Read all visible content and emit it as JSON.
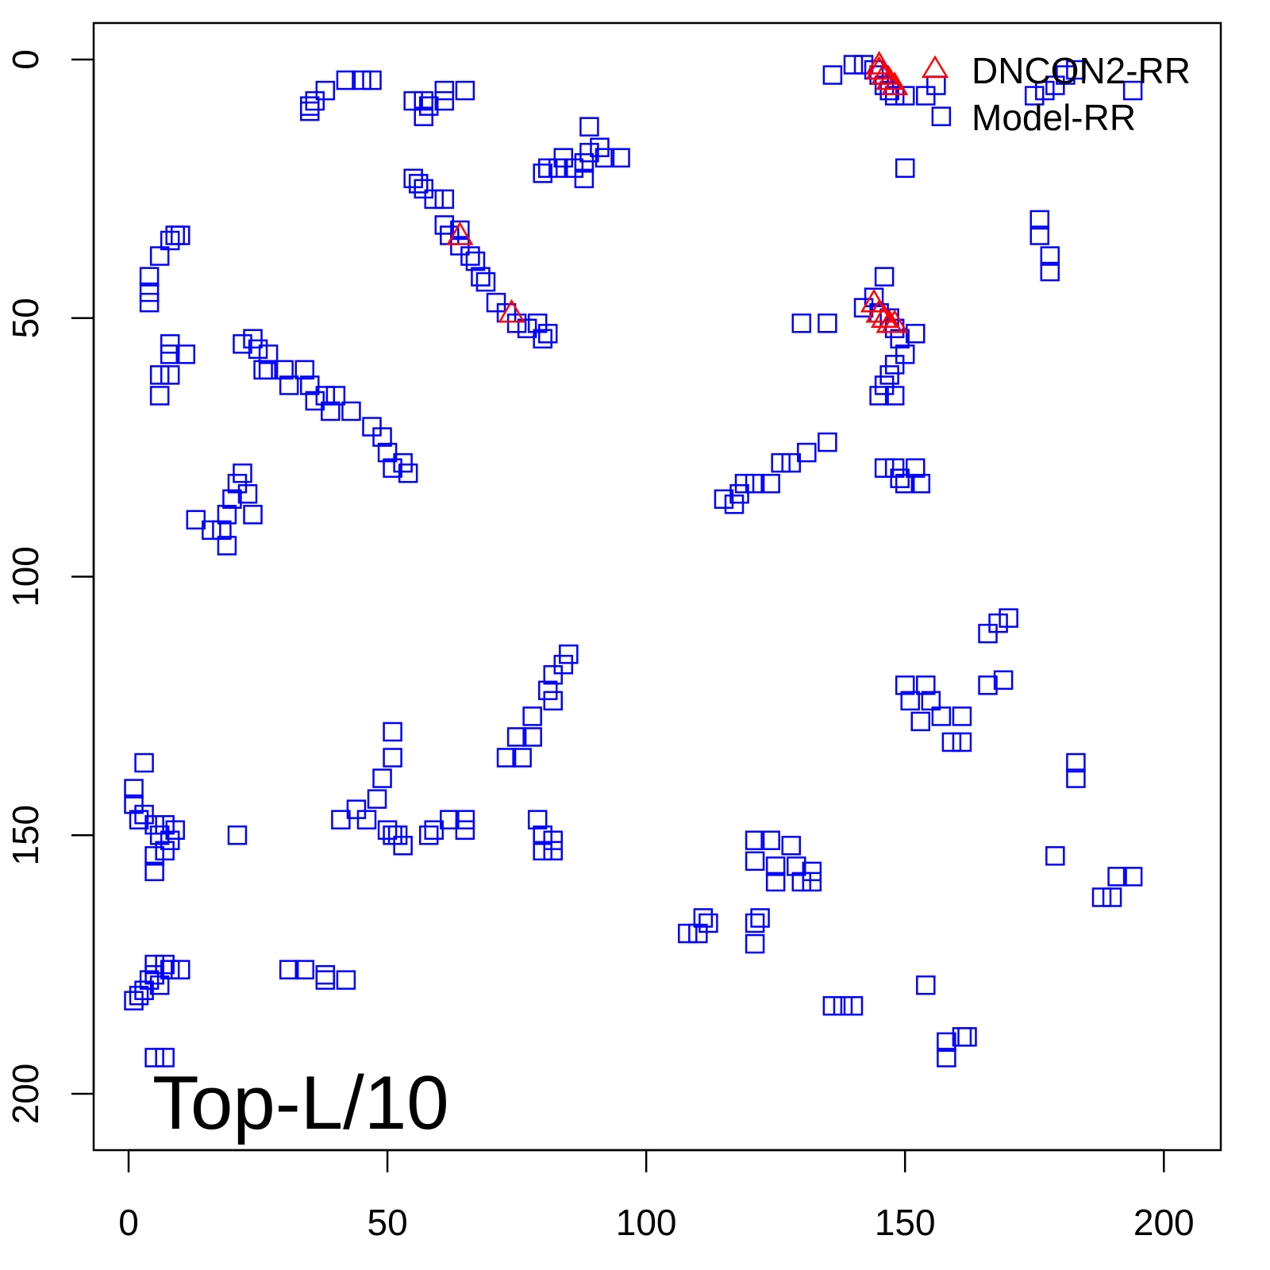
{
  "chart_data": {
    "type": "scatter",
    "title": "",
    "annotation": "Top-L/10",
    "xlabel": "",
    "ylabel": "",
    "xlim": [
      -6.75,
      211
    ],
    "ylim": [
      -7.06,
      210.9
    ],
    "y_inverted": true,
    "x_ticks": [
      "0",
      "50",
      "100",
      "150",
      "200"
    ],
    "y_ticks": [
      "0",
      "50",
      "100",
      "150",
      "200"
    ],
    "grid": false,
    "legend": {
      "placement": "top-right",
      "entries": [
        "DNCON2-RR",
        "Model-RR"
      ]
    },
    "colors": {
      "DNCON2-RR": "#FF0000",
      "Model-RR": "#0000FF"
    },
    "series": [
      {
        "name": "Model-RR",
        "marker": "square",
        "points": [
          [
            35,
            10
          ],
          [
            35,
            9
          ],
          [
            36,
            8
          ],
          [
            38,
            6
          ],
          [
            42,
            4
          ],
          [
            45,
            4
          ],
          [
            47,
            4
          ],
          [
            55,
            8
          ],
          [
            57,
            8
          ],
          [
            57,
            11
          ],
          [
            58,
            9
          ],
          [
            61,
            8
          ],
          [
            61,
            6
          ],
          [
            65,
            6
          ],
          [
            80,
            22
          ],
          [
            81,
            21
          ],
          [
            83,
            21
          ],
          [
            84,
            19
          ],
          [
            86,
            21
          ],
          [
            88,
            20
          ],
          [
            89,
            18
          ],
          [
            89,
            13
          ],
          [
            91,
            17
          ],
          [
            92,
            19
          ],
          [
            95,
            19
          ],
          [
            88,
            23
          ],
          [
            55,
            23
          ],
          [
            56,
            24
          ],
          [
            57,
            25
          ],
          [
            59,
            27
          ],
          [
            61,
            27
          ],
          [
            61,
            32
          ],
          [
            62,
            34
          ],
          [
            64,
            33
          ],
          [
            64,
            36
          ],
          [
            66,
            38
          ],
          [
            67,
            39
          ],
          [
            68,
            42
          ],
          [
            69,
            43
          ],
          [
            71,
            47
          ],
          [
            73,
            49
          ],
          [
            75,
            51
          ],
          [
            77,
            52
          ],
          [
            79,
            51
          ],
          [
            80,
            54
          ],
          [
            81,
            53
          ],
          [
            136,
            3
          ],
          [
            140,
            1
          ],
          [
            142,
            1
          ],
          [
            144,
            2
          ],
          [
            145,
            3
          ],
          [
            146,
            5
          ],
          [
            147,
            6
          ],
          [
            148,
            7
          ],
          [
            150,
            7
          ],
          [
            154,
            7
          ],
          [
            156,
            5
          ],
          [
            157,
            11
          ],
          [
            150,
            21
          ],
          [
            175,
            7
          ],
          [
            177,
            6
          ],
          [
            179,
            5
          ],
          [
            181,
            3
          ],
          [
            183,
            2
          ],
          [
            194,
            6
          ],
          [
            176,
            31
          ],
          [
            176,
            34
          ],
          [
            178,
            38
          ],
          [
            178,
            41
          ],
          [
            130,
            51
          ],
          [
            135,
            51
          ],
          [
            142,
            48
          ],
          [
            144,
            46
          ],
          [
            145,
            49
          ],
          [
            146,
            42
          ],
          [
            147,
            50
          ],
          [
            148,
            52
          ],
          [
            149,
            54
          ],
          [
            150,
            57
          ],
          [
            152,
            53
          ],
          [
            148,
            59
          ],
          [
            147,
            61
          ],
          [
            146,
            63
          ],
          [
            145,
            65
          ],
          [
            148,
            65
          ],
          [
            4,
            42
          ],
          [
            4,
            45
          ],
          [
            4,
            47
          ],
          [
            6,
            38
          ],
          [
            8,
            35
          ],
          [
            9,
            34
          ],
          [
            10,
            34
          ],
          [
            8,
            55
          ],
          [
            8,
            57
          ],
          [
            6,
            61
          ],
          [
            8,
            61
          ],
          [
            11,
            57
          ],
          [
            6,
            65
          ],
          [
            22,
            55
          ],
          [
            24,
            54
          ],
          [
            25,
            56
          ],
          [
            27,
            57
          ],
          [
            26,
            60
          ],
          [
            27,
            60
          ],
          [
            30,
            60
          ],
          [
            31,
            63
          ],
          [
            34,
            60
          ],
          [
            35,
            63
          ],
          [
            36,
            66
          ],
          [
            38,
            65
          ],
          [
            39,
            68
          ],
          [
            40,
            65
          ],
          [
            43,
            68
          ],
          [
            47,
            71
          ],
          [
            49,
            73
          ],
          [
            50,
            76
          ],
          [
            51,
            79
          ],
          [
            53,
            78
          ],
          [
            54,
            80
          ],
          [
            13,
            89
          ],
          [
            16,
            91
          ],
          [
            18,
            91
          ],
          [
            19,
            94
          ],
          [
            19,
            88
          ],
          [
            20,
            85
          ],
          [
            21,
            82
          ],
          [
            22,
            80
          ],
          [
            23,
            84
          ],
          [
            24,
            88
          ],
          [
            115,
            85
          ],
          [
            117,
            86
          ],
          [
            118,
            84
          ],
          [
            119,
            82
          ],
          [
            121,
            82
          ],
          [
            124,
            82
          ],
          [
            126,
            78
          ],
          [
            128,
            78
          ],
          [
            131,
            76
          ],
          [
            135,
            74
          ],
          [
            146,
            79
          ],
          [
            148,
            79
          ],
          [
            149,
            81
          ],
          [
            150,
            82
          ],
          [
            152,
            79
          ],
          [
            153,
            82
          ],
          [
            168,
            109
          ],
          [
            170,
            108
          ],
          [
            166,
            111
          ],
          [
            166,
            121
          ],
          [
            169,
            120
          ],
          [
            150,
            121
          ],
          [
            151,
            124
          ],
          [
            154,
            121
          ],
          [
            155,
            124
          ],
          [
            157,
            127
          ],
          [
            159,
            132
          ],
          [
            161,
            127
          ],
          [
            161,
            132
          ],
          [
            153,
            128
          ],
          [
            85,
            115
          ],
          [
            84,
            117
          ],
          [
            82,
            119
          ],
          [
            81,
            122
          ],
          [
            82,
            124
          ],
          [
            78,
            127
          ],
          [
            78,
            131
          ],
          [
            75,
            131
          ],
          [
            73,
            135
          ],
          [
            76,
            135
          ],
          [
            3,
            136
          ],
          [
            1,
            141
          ],
          [
            1,
            144
          ],
          [
            2,
            147
          ],
          [
            3,
            146
          ],
          [
            5,
            148
          ],
          [
            6,
            150
          ],
          [
            7,
            148
          ],
          [
            8,
            151
          ],
          [
            9,
            149
          ],
          [
            7,
            153
          ],
          [
            5,
            154
          ],
          [
            5,
            157
          ],
          [
            21,
            150
          ],
          [
            41,
            147
          ],
          [
            44,
            145
          ],
          [
            46,
            147
          ],
          [
            48,
            143
          ],
          [
            49,
            139
          ],
          [
            51,
            130
          ],
          [
            51,
            135
          ],
          [
            50,
            149
          ],
          [
            51,
            150
          ],
          [
            52,
            150
          ],
          [
            53,
            152
          ],
          [
            58,
            150
          ],
          [
            59,
            149
          ],
          [
            62,
            147
          ],
          [
            65,
            149
          ],
          [
            65,
            147
          ],
          [
            79,
            147
          ],
          [
            80,
            150
          ],
          [
            80,
            153
          ],
          [
            82,
            151
          ],
          [
            82,
            153
          ],
          [
            121,
            151
          ],
          [
            121,
            155
          ],
          [
            124,
            151
          ],
          [
            125,
            156
          ],
          [
            125,
            159
          ],
          [
            128,
            152
          ],
          [
            129,
            156
          ],
          [
            130,
            159
          ],
          [
            132,
            157
          ],
          [
            132,
            159
          ],
          [
            183,
            136
          ],
          [
            183,
            139
          ],
          [
            179,
            154
          ],
          [
            188,
            162
          ],
          [
            190,
            162
          ],
          [
            191,
            158
          ],
          [
            194,
            158
          ],
          [
            108,
            169
          ],
          [
            110,
            169
          ],
          [
            111,
            166
          ],
          [
            112,
            167
          ],
          [
            121,
            167
          ],
          [
            122,
            166
          ],
          [
            121,
            171
          ],
          [
            1,
            182
          ],
          [
            2,
            181
          ],
          [
            3,
            180
          ],
          [
            4,
            178
          ],
          [
            5,
            177
          ],
          [
            6,
            179
          ],
          [
            5,
            175
          ],
          [
            7,
            175
          ],
          [
            8,
            176
          ],
          [
            10,
            176
          ],
          [
            31,
            176
          ],
          [
            34,
            176
          ],
          [
            38,
            177
          ],
          [
            42,
            178
          ],
          [
            38,
            178
          ],
          [
            136,
            183
          ],
          [
            138,
            183
          ],
          [
            140,
            183
          ],
          [
            154,
            179
          ],
          [
            158,
            190
          ],
          [
            158,
            193
          ],
          [
            161,
            189
          ],
          [
            162,
            189
          ],
          [
            5,
            193
          ],
          [
            7,
            193
          ]
        ]
      },
      {
        "name": "DNCON2-RR",
        "marker": "triangle",
        "points": [
          [
            64,
            34
          ],
          [
            74,
            49
          ],
          [
            145,
            1
          ],
          [
            145,
            2
          ],
          [
            146,
            3
          ],
          [
            147,
            4
          ],
          [
            148,
            5
          ],
          [
            144,
            47
          ],
          [
            145,
            49
          ],
          [
            146,
            50
          ],
          [
            147,
            51
          ],
          [
            148,
            51
          ]
        ]
      }
    ]
  }
}
